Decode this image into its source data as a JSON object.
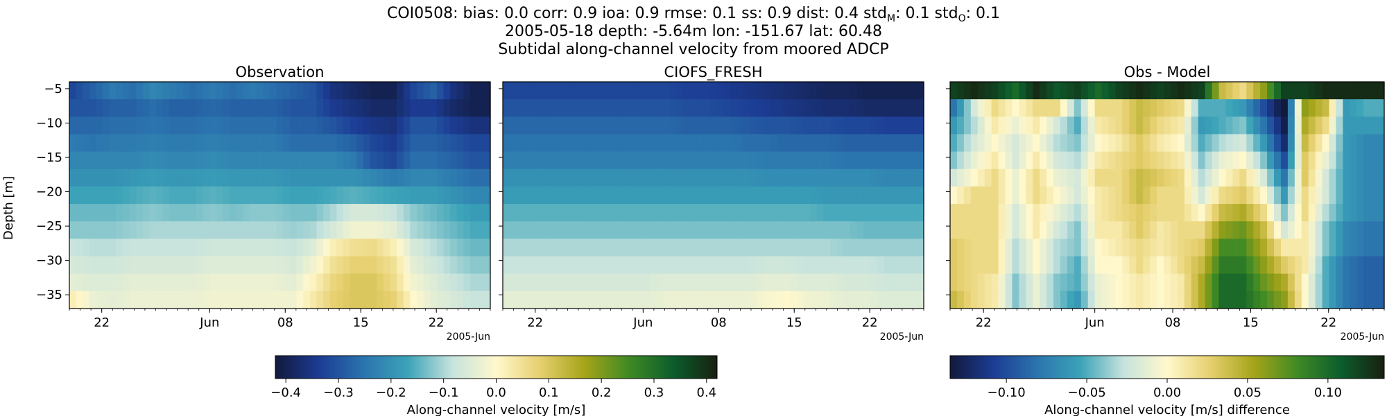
{
  "figure": {
    "title_line1": "COI0508: bias: 0.0  corr: 0.9  ioa: 0.9  rmse: 0.1  ss: 0.9  dist: 0.4  std",
    "title_line1_sub_m": "M",
    "title_line1_mid": ": 0.1  std",
    "title_line1_sub_o": "O",
    "title_line1_end": ": 0.1",
    "title_line2": "2005-05-18 depth: -5.64m lon: -151.67 lat: 60.48",
    "title_line3": "Subtidal along-channel velocity from moored ADCP"
  },
  "colormaps": {
    "velocity": [
      "#121a3c",
      "#1c3c94",
      "#2b74ae",
      "#3ba3b8",
      "#c6e3dd",
      "#fff8cc",
      "#e6cf6e",
      "#a5a419",
      "#3f8a24",
      "#0c5d2d",
      "#17200f"
    ]
  },
  "chart_data": [
    {
      "type": "heatmap",
      "title": "Observation",
      "ylabel": "Depth [m]",
      "x_tick_labels": [
        "22",
        "Jun",
        "08",
        "15",
        "22"
      ],
      "x_offset_label": "2005-Jun",
      "y_ticks": [
        -5,
        -10,
        -15,
        -20,
        -25,
        -30,
        -35
      ],
      "ylim": [
        -37,
        -4
      ],
      "depth_bins": [
        -5.6,
        -8.1,
        -10.6,
        -13.1,
        -15.6,
        -18.1,
        -20.6,
        -23.1,
        -25.6,
        -28.1,
        -30.6,
        -33.1,
        -35.6
      ],
      "x_dates": [
        "2005-05-18",
        "2005-05-20",
        "2005-05-22",
        "2005-05-24",
        "2005-05-26",
        "2005-05-28",
        "2005-05-30",
        "2005-06-01",
        "2005-06-03",
        "2005-06-05",
        "2005-06-07",
        "2005-06-09",
        "2005-06-11",
        "2005-06-13",
        "2005-06-15",
        "2005-06-17",
        "2005-06-19",
        "2005-06-21",
        "2005-06-23",
        "2005-06-25",
        "2005-06-27"
      ],
      "values": [
        [
          -0.32,
          -0.28,
          -0.24,
          -0.26,
          -0.22,
          -0.24,
          -0.26,
          -0.24,
          -0.26,
          -0.24,
          -0.26,
          -0.28,
          -0.3,
          -0.36,
          -0.38,
          -0.4,
          -0.4,
          -0.32,
          -0.28,
          -0.36,
          -0.4
        ],
        [
          -0.3,
          -0.3,
          -0.28,
          -0.28,
          -0.26,
          -0.28,
          -0.28,
          -0.27,
          -0.28,
          -0.28,
          -0.28,
          -0.3,
          -0.3,
          -0.34,
          -0.36,
          -0.38,
          -0.38,
          -0.34,
          -0.34,
          -0.38,
          -0.4
        ],
        [
          -0.27,
          -0.27,
          -0.26,
          -0.26,
          -0.25,
          -0.26,
          -0.26,
          -0.25,
          -0.26,
          -0.26,
          -0.26,
          -0.28,
          -0.28,
          -0.3,
          -0.33,
          -0.35,
          -0.36,
          -0.3,
          -0.3,
          -0.34,
          -0.36
        ],
        [
          -0.24,
          -0.25,
          -0.24,
          -0.24,
          -0.23,
          -0.24,
          -0.24,
          -0.23,
          -0.24,
          -0.24,
          -0.24,
          -0.26,
          -0.26,
          -0.26,
          -0.28,
          -0.32,
          -0.34,
          -0.28,
          -0.28,
          -0.3,
          -0.32
        ],
        [
          -0.22,
          -0.22,
          -0.22,
          -0.22,
          -0.21,
          -0.22,
          -0.22,
          -0.21,
          -0.22,
          -0.22,
          -0.22,
          -0.22,
          -0.22,
          -0.22,
          -0.24,
          -0.3,
          -0.32,
          -0.26,
          -0.26,
          -0.28,
          -0.3
        ],
        [
          -0.2,
          -0.2,
          -0.2,
          -0.19,
          -0.18,
          -0.19,
          -0.19,
          -0.18,
          -0.19,
          -0.19,
          -0.19,
          -0.2,
          -0.2,
          -0.2,
          -0.2,
          -0.22,
          -0.24,
          -0.22,
          -0.22,
          -0.24,
          -0.26
        ],
        [
          -0.17,
          -0.17,
          -0.17,
          -0.16,
          -0.15,
          -0.16,
          -0.16,
          -0.15,
          -0.16,
          -0.16,
          -0.16,
          -0.17,
          -0.17,
          -0.16,
          -0.15,
          -0.16,
          -0.17,
          -0.18,
          -0.18,
          -0.2,
          -0.22
        ],
        [
          -0.14,
          -0.14,
          -0.14,
          -0.13,
          -0.12,
          -0.13,
          -0.13,
          -0.12,
          -0.13,
          -0.12,
          -0.12,
          -0.13,
          -0.13,
          -0.1,
          -0.06,
          -0.06,
          -0.08,
          -0.12,
          -0.14,
          -0.16,
          -0.18
        ],
        [
          -0.12,
          -0.12,
          -0.12,
          -0.11,
          -0.1,
          -0.1,
          -0.1,
          -0.1,
          -0.1,
          -0.1,
          -0.1,
          -0.11,
          -0.1,
          -0.06,
          -0.02,
          -0.02,
          -0.04,
          -0.1,
          -0.12,
          -0.14,
          -0.16
        ],
        [
          -0.08,
          -0.09,
          -0.09,
          -0.08,
          -0.08,
          -0.08,
          -0.08,
          -0.07,
          -0.07,
          -0.07,
          -0.07,
          -0.08,
          -0.05,
          0.02,
          0.05,
          0.06,
          0.02,
          -0.06,
          -0.09,
          -0.12,
          -0.14
        ],
        [
          -0.06,
          -0.07,
          -0.07,
          -0.06,
          -0.06,
          -0.06,
          -0.06,
          -0.05,
          -0.05,
          -0.05,
          -0.05,
          -0.06,
          -0.02,
          0.05,
          0.08,
          0.08,
          0.05,
          -0.04,
          -0.07,
          -0.1,
          -0.12
        ],
        [
          -0.04,
          -0.05,
          -0.05,
          -0.04,
          -0.04,
          -0.04,
          -0.04,
          -0.03,
          -0.03,
          -0.03,
          -0.03,
          -0.04,
          0.01,
          0.07,
          0.1,
          0.1,
          0.06,
          -0.02,
          -0.05,
          -0.08,
          -0.1
        ],
        [
          0.02,
          -0.03,
          -0.04,
          -0.03,
          -0.03,
          -0.03,
          -0.03,
          -0.02,
          -0.02,
          -0.02,
          -0.02,
          -0.02,
          0.03,
          0.08,
          0.1,
          0.1,
          0.08,
          0.0,
          -0.04,
          -0.06,
          -0.08
        ]
      ]
    },
    {
      "type": "heatmap",
      "title": "CIOFS_FRESH",
      "x_tick_labels": [
        "22",
        "Jun",
        "08",
        "15",
        "22"
      ],
      "x_offset_label": "2005-Jun",
      "ylim": [
        -37,
        -4
      ],
      "depth_bins": [
        -5.6,
        -8.1,
        -10.6,
        -13.1,
        -15.6,
        -18.1,
        -20.6,
        -23.1,
        -25.6,
        -28.1,
        -30.6,
        -33.1,
        -35.6
      ],
      "x_dates": [
        "2005-05-18",
        "2005-05-20",
        "2005-05-22",
        "2005-05-24",
        "2005-05-26",
        "2005-05-28",
        "2005-05-30",
        "2005-06-01",
        "2005-06-03",
        "2005-06-05",
        "2005-06-07",
        "2005-06-09",
        "2005-06-11",
        "2005-06-13",
        "2005-06-15",
        "2005-06-17",
        "2005-06-19",
        "2005-06-21",
        "2005-06-23",
        "2005-06-25",
        "2005-06-27"
      ],
      "values": [
        [
          -0.32,
          -0.32,
          -0.32,
          -0.32,
          -0.32,
          -0.32,
          -0.32,
          -0.32,
          -0.32,
          -0.33,
          -0.33,
          -0.34,
          -0.35,
          -0.36,
          -0.37,
          -0.38,
          -0.39,
          -0.39,
          -0.4,
          -0.4,
          -0.4
        ],
        [
          -0.3,
          -0.3,
          -0.3,
          -0.3,
          -0.3,
          -0.3,
          -0.3,
          -0.3,
          -0.3,
          -0.31,
          -0.31,
          -0.32,
          -0.33,
          -0.34,
          -0.35,
          -0.36,
          -0.37,
          -0.37,
          -0.38,
          -0.38,
          -0.38
        ],
        [
          -0.27,
          -0.27,
          -0.27,
          -0.27,
          -0.27,
          -0.27,
          -0.27,
          -0.27,
          -0.27,
          -0.28,
          -0.28,
          -0.28,
          -0.29,
          -0.3,
          -0.3,
          -0.31,
          -0.31,
          -0.32,
          -0.32,
          -0.33,
          -0.33
        ],
        [
          -0.25,
          -0.25,
          -0.25,
          -0.25,
          -0.25,
          -0.25,
          -0.25,
          -0.25,
          -0.25,
          -0.25,
          -0.25,
          -0.25,
          -0.26,
          -0.26,
          -0.27,
          -0.27,
          -0.27,
          -0.28,
          -0.28,
          -0.28,
          -0.28
        ],
        [
          -0.23,
          -0.23,
          -0.23,
          -0.23,
          -0.23,
          -0.23,
          -0.23,
          -0.23,
          -0.23,
          -0.23,
          -0.23,
          -0.23,
          -0.23,
          -0.24,
          -0.24,
          -0.24,
          -0.24,
          -0.25,
          -0.25,
          -0.25,
          -0.25
        ],
        [
          -0.2,
          -0.2,
          -0.2,
          -0.2,
          -0.2,
          -0.2,
          -0.2,
          -0.2,
          -0.2,
          -0.2,
          -0.2,
          -0.2,
          -0.2,
          -0.21,
          -0.21,
          -0.21,
          -0.21,
          -0.21,
          -0.21,
          -0.22,
          -0.22
        ],
        [
          -0.18,
          -0.18,
          -0.18,
          -0.18,
          -0.18,
          -0.18,
          -0.18,
          -0.18,
          -0.18,
          -0.18,
          -0.18,
          -0.18,
          -0.18,
          -0.18,
          -0.18,
          -0.18,
          -0.19,
          -0.19,
          -0.19,
          -0.19,
          -0.19
        ],
        [
          -0.15,
          -0.15,
          -0.15,
          -0.15,
          -0.15,
          -0.15,
          -0.15,
          -0.15,
          -0.15,
          -0.15,
          -0.15,
          -0.15,
          -0.15,
          -0.15,
          -0.15,
          -0.15,
          -0.16,
          -0.16,
          -0.16,
          -0.16,
          -0.16
        ],
        [
          -0.13,
          -0.13,
          -0.13,
          -0.13,
          -0.13,
          -0.13,
          -0.13,
          -0.13,
          -0.13,
          -0.13,
          -0.13,
          -0.13,
          -0.13,
          -0.13,
          -0.13,
          -0.13,
          -0.13,
          -0.13,
          -0.14,
          -0.14,
          -0.14
        ],
        [
          -0.1,
          -0.1,
          -0.1,
          -0.1,
          -0.1,
          -0.1,
          -0.1,
          -0.1,
          -0.1,
          -0.1,
          -0.1,
          -0.1,
          -0.1,
          -0.1,
          -0.1,
          -0.1,
          -0.1,
          -0.11,
          -0.11,
          -0.11,
          -0.11
        ],
        [
          -0.08,
          -0.08,
          -0.08,
          -0.08,
          -0.08,
          -0.08,
          -0.08,
          -0.08,
          -0.08,
          -0.08,
          -0.08,
          -0.08,
          -0.08,
          -0.07,
          -0.07,
          -0.08,
          -0.08,
          -0.08,
          -0.08,
          -0.09,
          -0.09
        ],
        [
          -0.06,
          -0.06,
          -0.06,
          -0.06,
          -0.06,
          -0.06,
          -0.06,
          -0.06,
          -0.05,
          -0.05,
          -0.05,
          -0.05,
          -0.05,
          -0.04,
          -0.04,
          -0.05,
          -0.05,
          -0.06,
          -0.06,
          -0.07,
          -0.07
        ],
        [
          -0.04,
          -0.04,
          -0.04,
          -0.04,
          -0.04,
          -0.04,
          -0.04,
          -0.04,
          -0.03,
          -0.03,
          -0.03,
          -0.03,
          -0.03,
          -0.01,
          0.0,
          -0.02,
          -0.03,
          -0.04,
          -0.04,
          -0.05,
          -0.05
        ]
      ]
    },
    {
      "type": "heatmap",
      "title": "Obs - Model",
      "x_tick_labels": [
        "22",
        "Jun",
        "08",
        "15",
        "22"
      ],
      "x_offset_label": "2005-Jun",
      "ylim": [
        -37,
        -4
      ],
      "depth_bins": [
        -5.6,
        -8.1,
        -10.6,
        -13.1,
        -15.6,
        -18.1,
        -20.6,
        -23.1,
        -25.6,
        -28.1,
        -30.6,
        -33.1,
        -35.6
      ],
      "x_dates": [
        "2005-05-18",
        "2005-05-20",
        "2005-05-22",
        "2005-05-24",
        "2005-05-26",
        "2005-05-28",
        "2005-05-30",
        "2005-06-01",
        "2005-06-03",
        "2005-06-05",
        "2005-06-07",
        "2005-06-09",
        "2005-06-11",
        "2005-06-13",
        "2005-06-15",
        "2005-06-17",
        "2005-06-19",
        "2005-06-21",
        "2005-06-23",
        "2005-06-25",
        "2005-06-27"
      ],
      "values": [
        [
          0.12,
          0.13,
          0.12,
          0.1,
          0.13,
          0.11,
          0.12,
          0.1,
          0.12,
          0.13,
          0.12,
          0.13,
          0.12,
          0.04,
          0.02,
          0.06,
          0.12,
          0.12,
          0.13,
          0.13,
          0.13
        ],
        [
          -0.08,
          -0.02,
          0.02,
          0.0,
          0.02,
          0.02,
          -0.04,
          0.02,
          0.02,
          0.04,
          0.03,
          0.02,
          -0.05,
          -0.05,
          -0.06,
          -0.1,
          -0.14,
          0.06,
          0.04,
          -0.06,
          -0.05
        ],
        [
          -0.06,
          -0.03,
          0.01,
          -0.01,
          0.01,
          -0.02,
          -0.05,
          0.01,
          0.02,
          0.04,
          0.02,
          0.01,
          -0.06,
          -0.05,
          -0.04,
          -0.08,
          -0.13,
          0.05,
          0.02,
          -0.06,
          -0.06
        ],
        [
          -0.05,
          -0.02,
          0.0,
          -0.02,
          0.0,
          -0.03,
          -0.04,
          0.0,
          0.01,
          0.03,
          0.01,
          0.0,
          -0.05,
          -0.03,
          -0.02,
          -0.06,
          -0.12,
          0.04,
          0.0,
          -0.06,
          -0.07
        ],
        [
          -0.04,
          -0.01,
          0.01,
          -0.02,
          0.01,
          -0.02,
          -0.03,
          0.01,
          0.02,
          0.03,
          0.02,
          0.01,
          -0.04,
          -0.01,
          0.0,
          -0.04,
          -0.1,
          0.03,
          -0.01,
          -0.06,
          -0.07
        ],
        [
          -0.02,
          0.0,
          0.02,
          -0.01,
          0.02,
          -0.01,
          -0.02,
          0.02,
          0.02,
          0.04,
          0.03,
          0.02,
          -0.03,
          0.0,
          0.02,
          -0.02,
          -0.08,
          0.03,
          -0.02,
          -0.06,
          -0.07
        ],
        [
          0.0,
          0.02,
          0.02,
          -0.01,
          0.02,
          0.0,
          -0.02,
          0.01,
          0.02,
          0.04,
          0.02,
          0.02,
          -0.02,
          0.02,
          0.03,
          0.0,
          -0.06,
          0.02,
          -0.02,
          -0.06,
          -0.07
        ],
        [
          0.02,
          0.02,
          0.02,
          -0.02,
          0.01,
          -0.01,
          -0.03,
          0.01,
          0.02,
          0.03,
          0.02,
          0.02,
          0.0,
          0.04,
          0.05,
          0.02,
          -0.04,
          0.02,
          -0.03,
          -0.06,
          -0.07
        ],
        [
          0.02,
          0.02,
          0.02,
          -0.02,
          0.01,
          -0.02,
          -0.04,
          0.01,
          0.01,
          0.03,
          0.01,
          0.02,
          0.02,
          0.06,
          0.07,
          0.04,
          -0.02,
          0.01,
          -0.04,
          -0.07,
          -0.08
        ],
        [
          0.03,
          0.02,
          0.02,
          -0.03,
          0.0,
          -0.03,
          -0.04,
          0.0,
          0.01,
          0.02,
          0.01,
          0.02,
          0.03,
          0.08,
          0.08,
          0.05,
          0.01,
          0.01,
          -0.04,
          -0.07,
          -0.08
        ],
        [
          0.03,
          0.02,
          0.02,
          -0.03,
          0.0,
          -0.03,
          -0.05,
          0.0,
          0.0,
          0.02,
          0.0,
          0.02,
          0.04,
          0.09,
          0.09,
          0.06,
          0.03,
          0.01,
          -0.05,
          -0.08,
          -0.09
        ],
        [
          0.03,
          0.02,
          0.01,
          -0.04,
          -0.01,
          -0.04,
          -0.05,
          -0.01,
          0.0,
          0.01,
          0.0,
          0.01,
          0.05,
          0.1,
          0.1,
          0.07,
          0.05,
          0.0,
          -0.05,
          -0.08,
          -0.09
        ],
        [
          0.04,
          0.02,
          0.01,
          -0.04,
          -0.01,
          -0.04,
          -0.06,
          -0.01,
          0.0,
          0.01,
          0.0,
          0.01,
          0.05,
          0.1,
          0.1,
          0.08,
          0.06,
          0.0,
          -0.05,
          -0.08,
          -0.09
        ]
      ]
    }
  ],
  "colorbars": [
    {
      "label": "Along-channel velocity [m/s]",
      "range": [
        -0.42,
        0.42
      ],
      "tick_labels": [
        "−0.4",
        "−0.3",
        "−0.2",
        "−0.1",
        "0.0",
        "0.1",
        "0.2",
        "0.3",
        "0.4"
      ],
      "tick_values": [
        -0.4,
        -0.3,
        -0.2,
        -0.1,
        0.0,
        0.1,
        0.2,
        0.3,
        0.4
      ]
    },
    {
      "label": "Along-channel velocity [m/s] difference",
      "range": [
        -0.135,
        0.135
      ],
      "tick_labels": [
        "−0.10",
        "−0.05",
        "0.00",
        "0.05",
        "0.10"
      ],
      "tick_values": [
        -0.1,
        -0.05,
        0.0,
        0.05,
        0.1
      ]
    }
  ]
}
